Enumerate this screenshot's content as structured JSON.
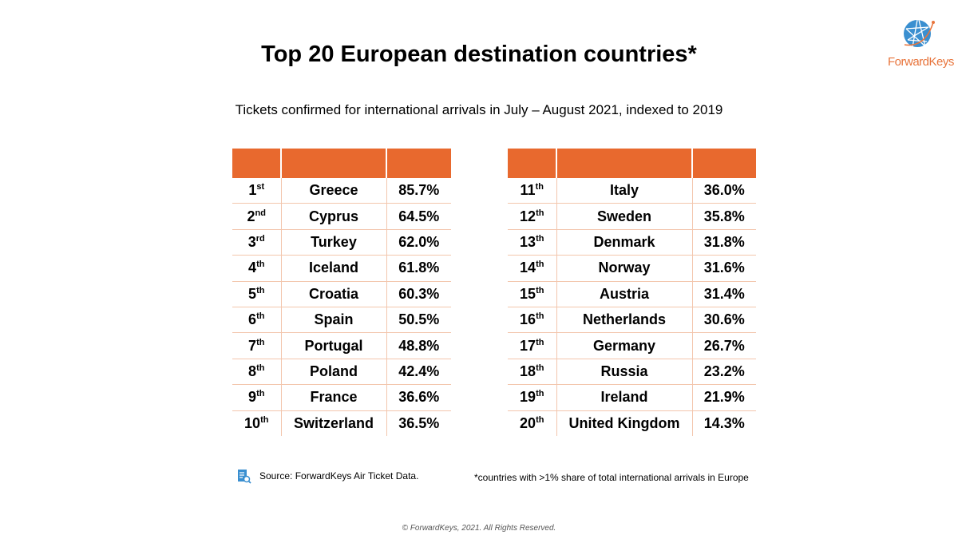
{
  "title": "Top 20 European destination countries*",
  "subtitle": "Tickets confirmed for international arrivals in July – August 2021, indexed to 2019",
  "logo": {
    "text": "ForwardKeys",
    "color": "#e8743b",
    "globe_color": "#3a8fd0"
  },
  "header_color": "#e8692e",
  "left_table": [
    {
      "rank": "1",
      "suffix": "st",
      "country": "Greece",
      "value": "85.7%"
    },
    {
      "rank": "2",
      "suffix": "nd",
      "country": "Cyprus",
      "value": "64.5%"
    },
    {
      "rank": "3",
      "suffix": "rd",
      "country": "Turkey",
      "value": "62.0%"
    },
    {
      "rank": "4",
      "suffix": "th",
      "country": "Iceland",
      "value": "61.8%"
    },
    {
      "rank": "5",
      "suffix": "th",
      "country": "Croatia",
      "value": "60.3%"
    },
    {
      "rank": "6",
      "suffix": "th",
      "country": "Spain",
      "value": "50.5%"
    },
    {
      "rank": "7",
      "suffix": "th",
      "country": "Portugal",
      "value": "48.8%"
    },
    {
      "rank": "8",
      "suffix": "th",
      "country": "Poland",
      "value": "42.4%"
    },
    {
      "rank": "9",
      "suffix": "th",
      "country": "France",
      "value": "36.6%"
    },
    {
      "rank": "10",
      "suffix": "th",
      "country": "Switzerland",
      "value": "36.5%"
    }
  ],
  "right_table": [
    {
      "rank": "11",
      "suffix": "th",
      "country": "Italy",
      "value": "36.0%"
    },
    {
      "rank": "12",
      "suffix": "th",
      "country": "Sweden",
      "value": "35.8%"
    },
    {
      "rank": "13",
      "suffix": "th",
      "country": "Denmark",
      "value": "31.8%"
    },
    {
      "rank": "14",
      "suffix": "th",
      "country": "Norway",
      "value": "31.6%"
    },
    {
      "rank": "15",
      "suffix": "th",
      "country": "Austria",
      "value": "31.4%"
    },
    {
      "rank": "16",
      "suffix": "th",
      "country": "Netherlands",
      "value": "30.6%"
    },
    {
      "rank": "17",
      "suffix": "th",
      "country": "Germany",
      "value": "26.7%"
    },
    {
      "rank": "18",
      "suffix": "th",
      "country": "Russia",
      "value": "23.2%"
    },
    {
      "rank": "19",
      "suffix": "th",
      "country": "Ireland",
      "value": "21.9%"
    },
    {
      "rank": "20",
      "suffix": "th",
      "country": "United Kingdom",
      "value": "14.3%"
    }
  ],
  "source": "Source: ForwardKeys Air Ticket Data.",
  "footnote": "*countries with >1% share of total international arrivals in Europe",
  "copyright": "© ForwardKeys, 2021. All Rights Reserved."
}
